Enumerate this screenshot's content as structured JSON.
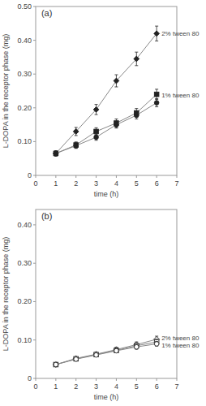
{
  "chart_data": [
    {
      "type": "line",
      "title": "(a)",
      "x_label": "time (h)",
      "y_label": "L-DOPA in the receptor phase (mg)",
      "xlim": [
        0,
        7
      ],
      "ylim": [
        0,
        0.5
      ],
      "xticks": [
        0,
        1,
        2,
        3,
        4,
        5,
        6,
        7
      ],
      "yticks": [
        0,
        {
          "value": 0.1,
          "label": "0.10"
        },
        {
          "value": 0.2,
          "label": "0.20"
        },
        {
          "value": 0.3,
          "label": "0.30"
        },
        {
          "value": 0.4,
          "label": "0.40"
        },
        {
          "value": 0.5,
          "label": "0.50"
        }
      ],
      "grid": false,
      "series": [
        {
          "x": [
            1,
            2,
            3,
            4,
            5,
            6
          ],
          "values": [
            0.065,
            0.13,
            0.195,
            0.28,
            0.345,
            0.42
          ],
          "errors": [
            0.008,
            0.012,
            0.015,
            0.018,
            0.02,
            0.022
          ],
          "marker": "diamond",
          "color": "#222222"
        },
        {
          "x": [
            1,
            2,
            3,
            4,
            5,
            6
          ],
          "values": [
            0.065,
            0.09,
            0.13,
            0.155,
            0.185,
            0.24
          ],
          "errors": [
            0.007,
            0.009,
            0.011,
            0.012,
            0.013,
            0.015
          ],
          "marker": "square",
          "color": "#222222"
        },
        {
          "x": [
            1,
            2,
            3,
            4,
            5,
            6
          ],
          "values": [
            0.065,
            0.088,
            0.113,
            0.15,
            0.178,
            0.215
          ],
          "errors": [
            0.006,
            0.008,
            0.009,
            0.01,
            0.011,
            0.012
          ],
          "marker": "circle",
          "color": "#222222"
        }
      ],
      "annotations": [
        {
          "text": "2% tween 80",
          "x": 6.08,
          "y": 0.42
        },
        {
          "text": "1% tween 80",
          "x": 6.08,
          "y": 0.237
        }
      ]
    },
    {
      "type": "line",
      "title": "(b)",
      "x_label": "time (h)",
      "y_label": "L-DOPA in the receptor phase (mg)",
      "xlim": [
        0,
        7
      ],
      "ylim": [
        0,
        0.44
      ],
      "xticks": [
        0,
        1,
        2,
        3,
        4,
        5,
        6,
        7
      ],
      "yticks": [
        0,
        {
          "value": 0.1,
          "label": "0.10"
        },
        {
          "value": 0.2,
          "label": "0.20"
        },
        {
          "value": 0.3,
          "label": "0.30"
        },
        {
          "value": 0.4,
          "label": "0.40"
        }
      ],
      "grid": false,
      "series": [
        {
          "x": [
            1,
            2,
            3,
            4,
            5,
            6
          ],
          "values": [
            0.036,
            0.052,
            0.063,
            0.075,
            0.088,
            0.102
          ],
          "errors": [
            0.003,
            0.004,
            0.005,
            0.006,
            0.007,
            0.008
          ],
          "marker": "open-diamond",
          "color": "#222222"
        },
        {
          "x": [
            1,
            2,
            3,
            4,
            5,
            6
          ],
          "values": [
            0.036,
            0.051,
            0.062,
            0.073,
            0.085,
            0.095
          ],
          "errors": [
            0.003,
            0.004,
            0.005,
            0.005,
            0.006,
            0.007
          ],
          "marker": "open-square",
          "color": "#222222"
        },
        {
          "x": [
            1,
            2,
            3,
            4,
            5,
            6
          ],
          "values": [
            0.036,
            0.05,
            0.061,
            0.072,
            0.082,
            0.09
          ],
          "errors": [
            0.003,
            0.004,
            0.004,
            0.005,
            0.006,
            0.006
          ],
          "marker": "open-circle",
          "color": "#222222"
        }
      ],
      "annotations": [
        {
          "text": "2% tween 80",
          "x": 6.08,
          "y": 0.102
        },
        {
          "text": "1% tween 80",
          "x": 6.08,
          "y": 0.09
        }
      ]
    }
  ]
}
